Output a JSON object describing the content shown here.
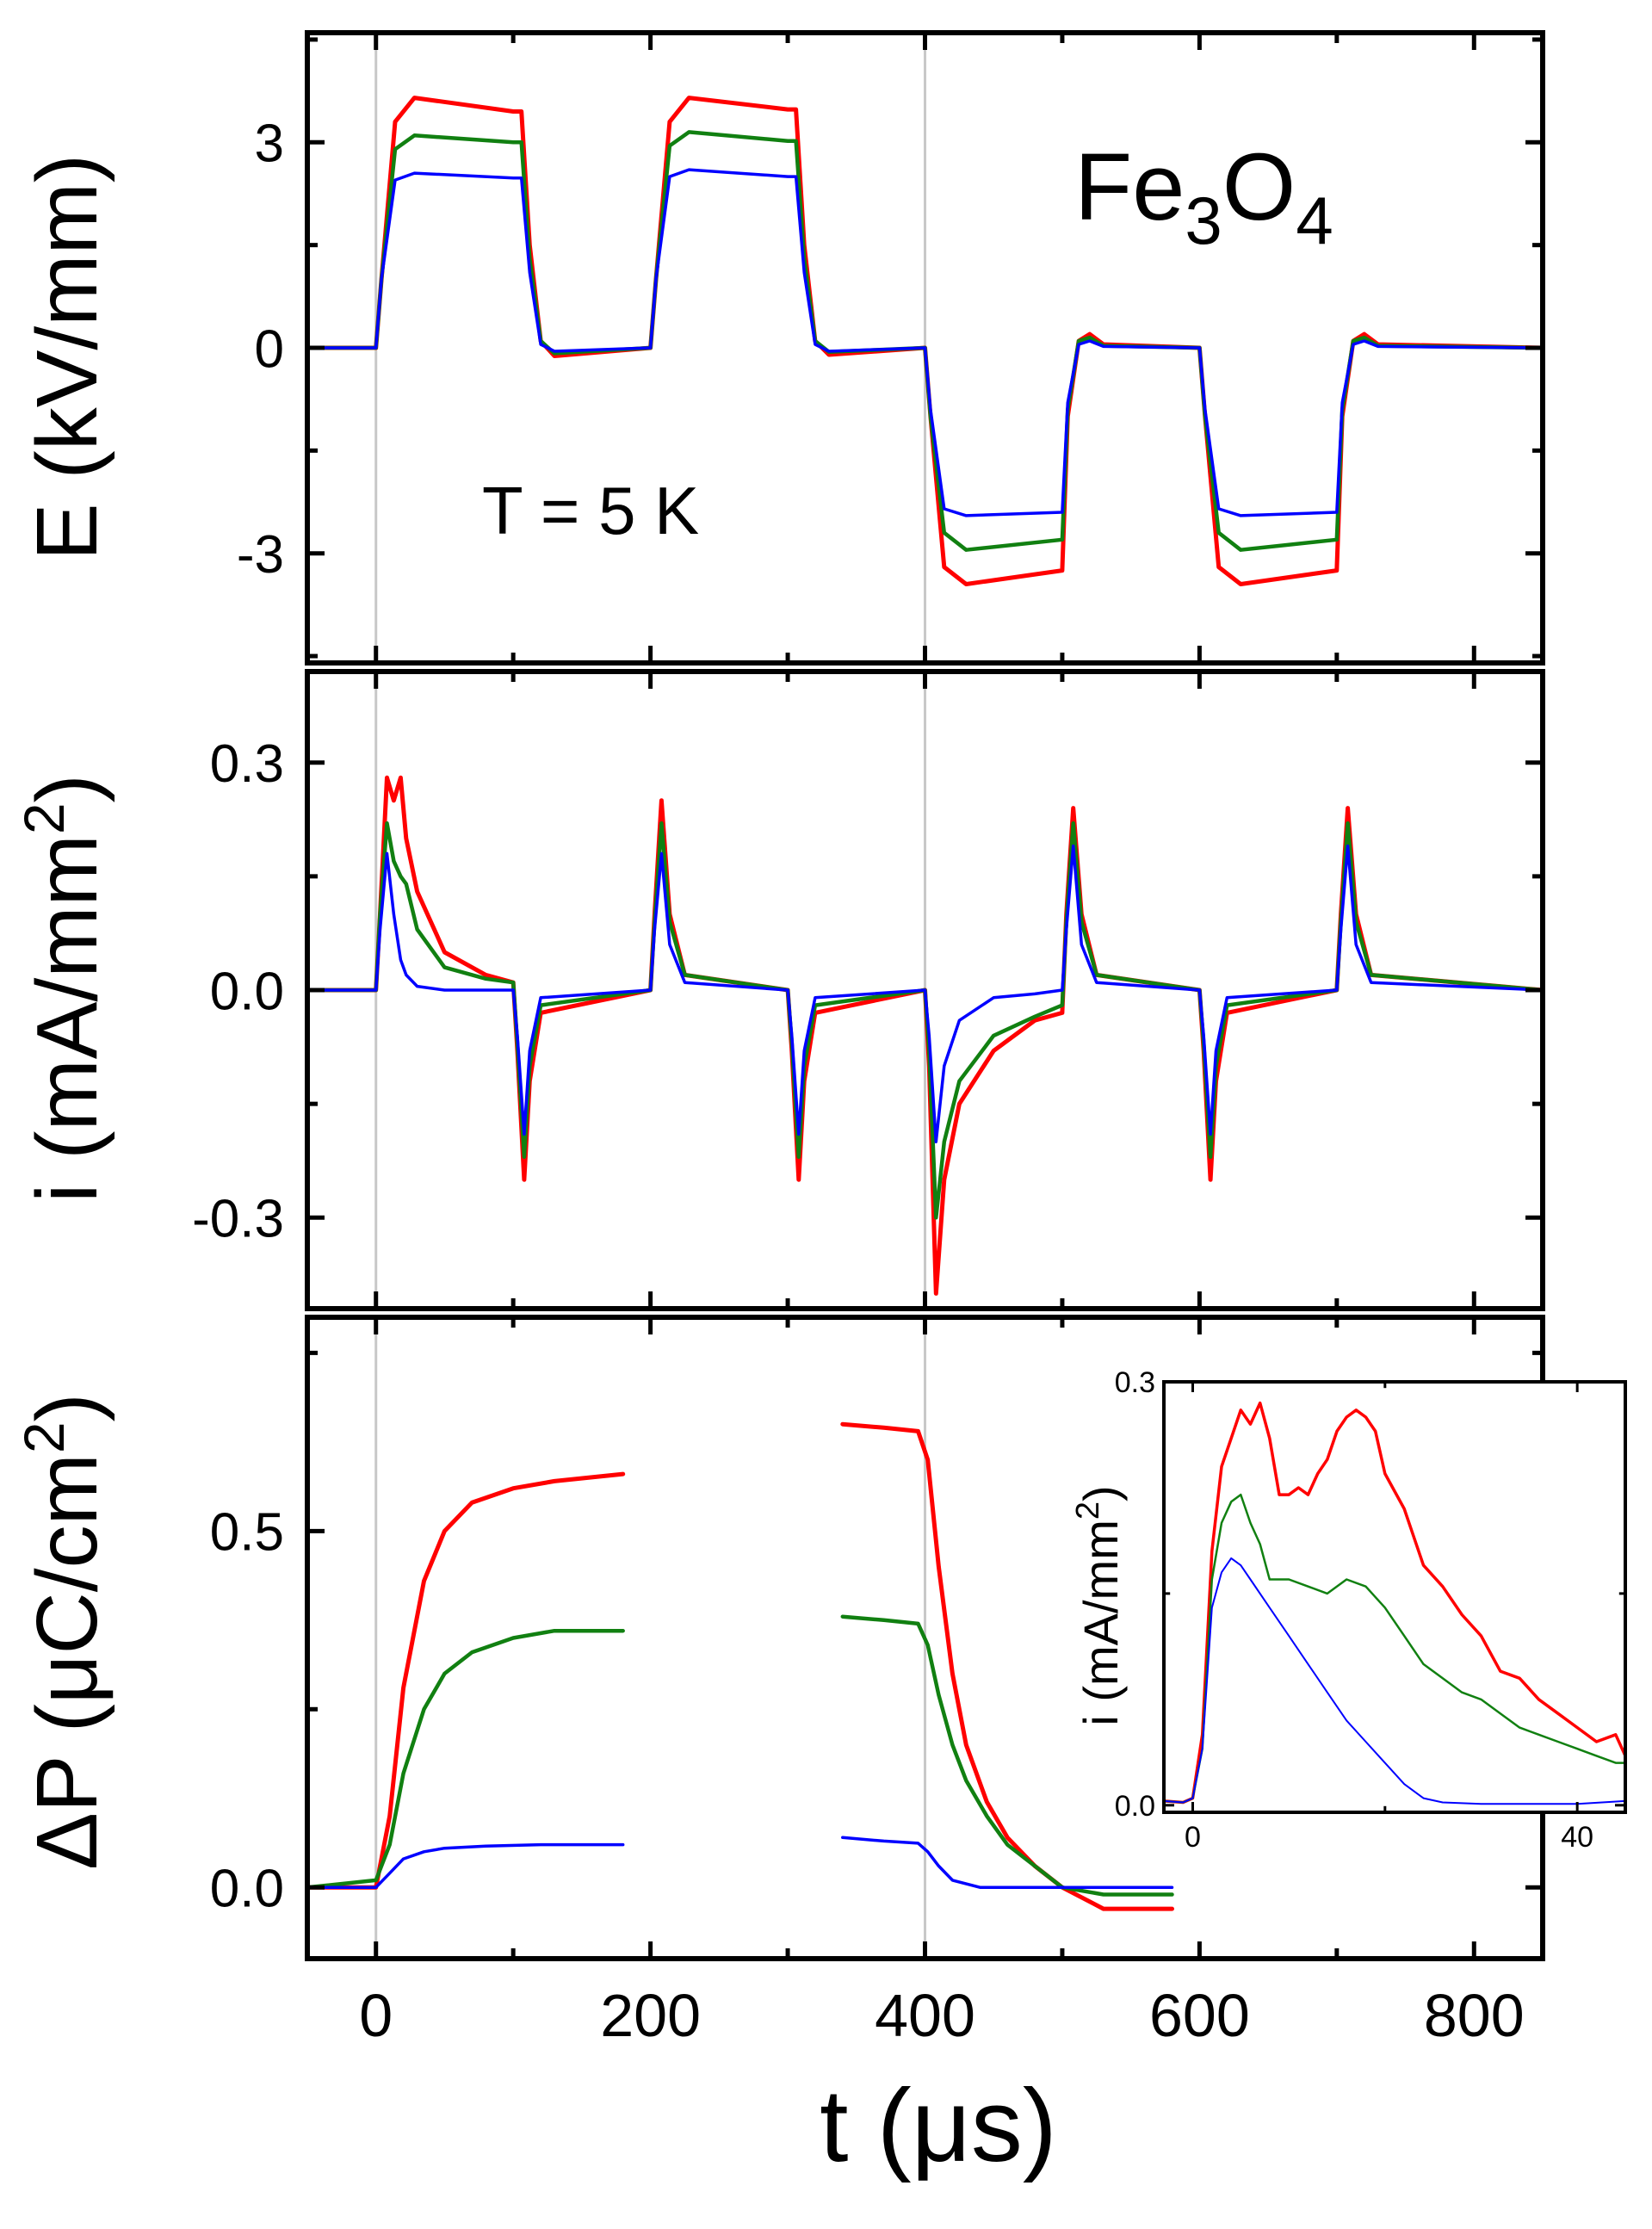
{
  "chart_data": [
    {
      "type": "line",
      "panel": "top",
      "ylabel": "E (kV/mm)",
      "xlim": [
        -50,
        850
      ],
      "ylim": [
        -4.6,
        4.6
      ],
      "yticks": [
        -3,
        0,
        3
      ],
      "ytick_labels": [
        "-3",
        "0",
        "3"
      ],
      "grid": false,
      "annotations": [
        {
          "text_main": "Fe",
          "sub1": "3",
          "mid": "O",
          "sub2": "4"
        },
        {
          "text": "T = 5 K"
        }
      ],
      "series": [
        {
          "color": "#ff0000",
          "x": [
            -50,
            0,
            4,
            14,
            28,
            100,
            106,
            112,
            120,
            130,
            200,
            204,
            214,
            228,
            300,
            306,
            312,
            320,
            330,
            400,
            404,
            414,
            430,
            500,
            504,
            512,
            520,
            530,
            600,
            604,
            614,
            630,
            700,
            704,
            712,
            720,
            730,
            850
          ],
          "y": [
            0,
            0,
            1.0,
            3.3,
            3.65,
            3.45,
            3.45,
            1.5,
            0.1,
            -0.12,
            0,
            1.0,
            3.3,
            3.65,
            3.48,
            3.48,
            1.5,
            0.1,
            -0.1,
            0,
            -1.0,
            -3.2,
            -3.45,
            -3.25,
            -1.0,
            0.1,
            0.2,
            0.05,
            0,
            -1.0,
            -3.2,
            -3.45,
            -3.25,
            -1.0,
            0.1,
            0.2,
            0.05,
            0
          ]
        },
        {
          "color": "#118011",
          "x": [
            -50,
            0,
            4,
            14,
            28,
            100,
            106,
            112,
            120,
            130,
            200,
            204,
            214,
            228,
            300,
            306,
            312,
            320,
            330,
            400,
            404,
            414,
            430,
            500,
            504,
            512,
            520,
            530,
            600,
            604,
            614,
            630,
            700,
            704,
            712,
            720,
            730,
            850
          ],
          "y": [
            0,
            0,
            1.0,
            2.9,
            3.1,
            3.0,
            3.0,
            1.3,
            0.1,
            -0.08,
            0,
            1.0,
            2.95,
            3.15,
            3.02,
            3.02,
            1.3,
            0.1,
            -0.06,
            0,
            -1.0,
            -2.7,
            -2.95,
            -2.8,
            -0.9,
            0.1,
            0.15,
            0.03,
            0,
            -1.0,
            -2.7,
            -2.95,
            -2.8,
            -0.9,
            0.1,
            0.15,
            0.03,
            0
          ]
        },
        {
          "color": "#0000ff",
          "x": [
            -50,
            0,
            4,
            14,
            28,
            100,
            106,
            112,
            120,
            130,
            200,
            204,
            214,
            228,
            300,
            306,
            312,
            320,
            330,
            400,
            404,
            414,
            430,
            500,
            504,
            512,
            520,
            530,
            600,
            604,
            614,
            630,
            700,
            704,
            712,
            720,
            730,
            850
          ],
          "y": [
            0,
            0,
            1.0,
            2.45,
            2.55,
            2.48,
            2.48,
            1.1,
            0.05,
            -0.05,
            0,
            1.0,
            2.5,
            2.6,
            2.5,
            2.5,
            1.1,
            0.05,
            -0.05,
            0,
            -0.9,
            -2.35,
            -2.45,
            -2.4,
            -0.8,
            0.05,
            0.1,
            0.02,
            0,
            -0.9,
            -2.35,
            -2.45,
            -2.4,
            -0.8,
            0.05,
            0.1,
            0.02,
            0
          ]
        }
      ]
    },
    {
      "type": "line",
      "panel": "middle",
      "ylabel_main": "i (mA/mm",
      "ylabel_sup": "2",
      "ylabel_end": ")",
      "xlim": [
        -50,
        850
      ],
      "ylim": [
        -0.42,
        0.42
      ],
      "yticks": [
        -0.3,
        0.0,
        0.3
      ],
      "ytick_labels": [
        "-0.3",
        "0.0",
        "0.3"
      ],
      "grid": false,
      "series": [
        {
          "color": "#ff0000",
          "x": [
            -50,
            0,
            3,
            8,
            13,
            18,
            22,
            30,
            50,
            80,
            100,
            103,
            108,
            112,
            120,
            200,
            203,
            208,
            214,
            225,
            300,
            303,
            308,
            312,
            320,
            400,
            403,
            408,
            414,
            425,
            450,
            480,
            500,
            503,
            508,
            514,
            525,
            600,
            603,
            608,
            612,
            620,
            700,
            703,
            708,
            714,
            725,
            850
          ],
          "y": [
            0,
            0,
            0.1,
            0.28,
            0.25,
            0.28,
            0.2,
            0.13,
            0.05,
            0.02,
            0.01,
            -0.08,
            -0.25,
            -0.12,
            -0.03,
            0,
            0.1,
            0.25,
            0.1,
            0.02,
            0,
            -0.08,
            -0.25,
            -0.12,
            -0.03,
            0,
            -0.1,
            -0.4,
            -0.25,
            -0.15,
            -0.08,
            -0.04,
            -0.03,
            0.1,
            0.24,
            0.1,
            0.02,
            0,
            -0.08,
            -0.25,
            -0.12,
            -0.03,
            0,
            0.1,
            0.24,
            0.1,
            0.02,
            0
          ]
        },
        {
          "color": "#118011",
          "x": [
            -50,
            0,
            3,
            8,
            13,
            18,
            22,
            30,
            50,
            80,
            100,
            103,
            108,
            112,
            120,
            200,
            203,
            208,
            214,
            225,
            300,
            303,
            308,
            312,
            320,
            400,
            403,
            408,
            414,
            425,
            450,
            480,
            500,
            503,
            508,
            514,
            525,
            600,
            603,
            608,
            612,
            620,
            700,
            703,
            708,
            714,
            725,
            850
          ],
          "y": [
            0,
            0,
            0.1,
            0.22,
            0.17,
            0.15,
            0.14,
            0.08,
            0.03,
            0.015,
            0.01,
            -0.07,
            -0.22,
            -0.1,
            -0.02,
            0,
            0.09,
            0.22,
            0.09,
            0.02,
            0,
            -0.07,
            -0.22,
            -0.1,
            -0.02,
            0,
            -0.08,
            -0.3,
            -0.2,
            -0.12,
            -0.06,
            -0.035,
            -0.02,
            0.09,
            0.22,
            0.09,
            0.02,
            0,
            -0.07,
            -0.22,
            -0.1,
            -0.02,
            0,
            0.09,
            0.22,
            0.09,
            0.02,
            0
          ]
        },
        {
          "color": "#0000ff",
          "x": [
            -50,
            0,
            3,
            8,
            13,
            18,
            22,
            30,
            50,
            80,
            100,
            103,
            108,
            112,
            120,
            200,
            203,
            208,
            214,
            225,
            300,
            303,
            308,
            312,
            320,
            400,
            403,
            408,
            414,
            425,
            450,
            480,
            500,
            503,
            508,
            514,
            525,
            600,
            603,
            608,
            612,
            620,
            700,
            703,
            708,
            714,
            725,
            850
          ],
          "y": [
            0,
            0,
            0.08,
            0.18,
            0.1,
            0.04,
            0.02,
            0.005,
            0.0,
            0.0,
            0.0,
            -0.06,
            -0.19,
            -0.08,
            -0.01,
            0,
            0.08,
            0.18,
            0.06,
            0.01,
            0,
            -0.06,
            -0.19,
            -0.08,
            -0.01,
            0,
            -0.06,
            -0.2,
            -0.1,
            -0.04,
            -0.01,
            -0.005,
            0,
            0.08,
            0.19,
            0.06,
            0.01,
            0,
            -0.06,
            -0.19,
            -0.08,
            -0.01,
            0,
            0.08,
            0.19,
            0.06,
            0.01,
            0
          ]
        }
      ]
    },
    {
      "type": "line",
      "panel": "bottom",
      "ylabel_main": "ΔP (μC/cm",
      "ylabel_sup": "2",
      "ylabel_end": ")",
      "xlabel": "t (μs)",
      "xlim": [
        -50,
        850
      ],
      "ylim": [
        -0.1,
        0.8
      ],
      "xticks": [
        0,
        200,
        400,
        600,
        800
      ],
      "xtick_labels": [
        "0",
        "200",
        "400",
        "600",
        "800"
      ],
      "yticks": [
        0.0,
        0.5
      ],
      "ytick_labels": [
        "0.0",
        "0.5"
      ],
      "grid": false,
      "series": [
        {
          "color": "#ff0000",
          "segments": [
            {
              "x": [
                -50,
                0,
                10,
                20,
                35,
                50,
                70,
                100,
                130,
                180
              ],
              "y": [
                0.0,
                0.0,
                0.1,
                0.28,
                0.43,
                0.5,
                0.54,
                0.56,
                0.57,
                0.58
              ]
            },
            {
              "x": [
                340,
                370,
                395,
                402,
                410,
                420,
                430,
                445,
                460,
                480,
                500,
                530,
                580
              ],
              "y": [
                0.65,
                0.645,
                0.64,
                0.6,
                0.45,
                0.3,
                0.2,
                0.12,
                0.07,
                0.03,
                0.0,
                -0.03,
                -0.03
              ]
            }
          ]
        },
        {
          "color": "#118011",
          "segments": [
            {
              "x": [
                -50,
                0,
                10,
                20,
                35,
                50,
                70,
                100,
                130,
                180
              ],
              "y": [
                0.0,
                0.01,
                0.06,
                0.16,
                0.25,
                0.3,
                0.33,
                0.35,
                0.36,
                0.36
              ]
            },
            {
              "x": [
                340,
                370,
                395,
                402,
                410,
                420,
                430,
                445,
                460,
                480,
                500,
                530,
                580
              ],
              "y": [
                0.38,
                0.375,
                0.37,
                0.34,
                0.27,
                0.2,
                0.15,
                0.1,
                0.06,
                0.03,
                0.0,
                -0.01,
                -0.01
              ]
            }
          ]
        },
        {
          "color": "#0000ff",
          "segments": [
            {
              "x": [
                -50,
                0,
                10,
                20,
                35,
                50,
                80,
                120,
                180
              ],
              "y": [
                0.0,
                0.0,
                0.02,
                0.04,
                0.05,
                0.055,
                0.058,
                0.06,
                0.06
              ]
            },
            {
              "x": [
                340,
                370,
                395,
                402,
                410,
                420,
                440,
                470,
                500,
                580
              ],
              "y": [
                0.07,
                0.065,
                0.062,
                0.05,
                0.03,
                0.01,
                0.0,
                0.0,
                0.0,
                0.0
              ]
            }
          ]
        }
      ]
    },
    {
      "type": "line",
      "panel": "inset",
      "ylabel_main": "i (mA/mm",
      "ylabel_sup": "2",
      "ylabel_end": ")",
      "xlim": [
        -3,
        45
      ],
      "ylim": [
        -0.005,
        0.3
      ],
      "xticks": [
        0,
        40
      ],
      "xtick_labels": [
        "0",
        "40"
      ],
      "yticks": [
        0.0,
        0.3
      ],
      "ytick_labels": [
        "0.0",
        "0.3"
      ],
      "grid": false,
      "series": [
        {
          "color": "#ff0000",
          "x": [
            -3,
            -1,
            0,
            1,
            2,
            3,
            4,
            5,
            6,
            7,
            8,
            9,
            10,
            11,
            12,
            13,
            14,
            15,
            16,
            17,
            18,
            19,
            20,
            22,
            24,
            26,
            28,
            30,
            32,
            34,
            36,
            38,
            40,
            42,
            44,
            45
          ],
          "y": [
            0.003,
            0.002,
            0.005,
            0.05,
            0.18,
            0.24,
            0.26,
            0.28,
            0.27,
            0.285,
            0.26,
            0.22,
            0.22,
            0.225,
            0.22,
            0.235,
            0.245,
            0.265,
            0.275,
            0.28,
            0.275,
            0.265,
            0.235,
            0.21,
            0.17,
            0.155,
            0.135,
            0.12,
            0.095,
            0.09,
            0.075,
            0.065,
            0.055,
            0.045,
            0.05,
            0.035
          ]
        },
        {
          "color": "#118011",
          "x": [
            -3,
            -1,
            0,
            1,
            2,
            3,
            4,
            5,
            6,
            7,
            8,
            10,
            12,
            14,
            16,
            18,
            20,
            22,
            24,
            26,
            28,
            30,
            32,
            34,
            36,
            38,
            40,
            42,
            44,
            45
          ],
          "y": [
            0.003,
            0.002,
            0.005,
            0.04,
            0.16,
            0.2,
            0.215,
            0.22,
            0.2,
            0.185,
            0.16,
            0.16,
            0.155,
            0.15,
            0.16,
            0.155,
            0.14,
            0.12,
            0.1,
            0.09,
            0.08,
            0.075,
            0.065,
            0.055,
            0.05,
            0.045,
            0.04,
            0.035,
            0.03,
            0.03
          ]
        },
        {
          "color": "#0000ff",
          "x": [
            -3,
            -1,
            0,
            1,
            2,
            3,
            4,
            5,
            6,
            8,
            10,
            12,
            14,
            16,
            18,
            20,
            22,
            24,
            26,
            30,
            35,
            40,
            45
          ],
          "y": [
            0.003,
            0.002,
            0.005,
            0.04,
            0.14,
            0.165,
            0.175,
            0.17,
            0.16,
            0.14,
            0.12,
            0.1,
            0.08,
            0.06,
            0.045,
            0.03,
            0.015,
            0.005,
            0.002,
            0.001,
            0.001,
            0.001,
            0.003
          ]
        }
      ]
    }
  ]
}
